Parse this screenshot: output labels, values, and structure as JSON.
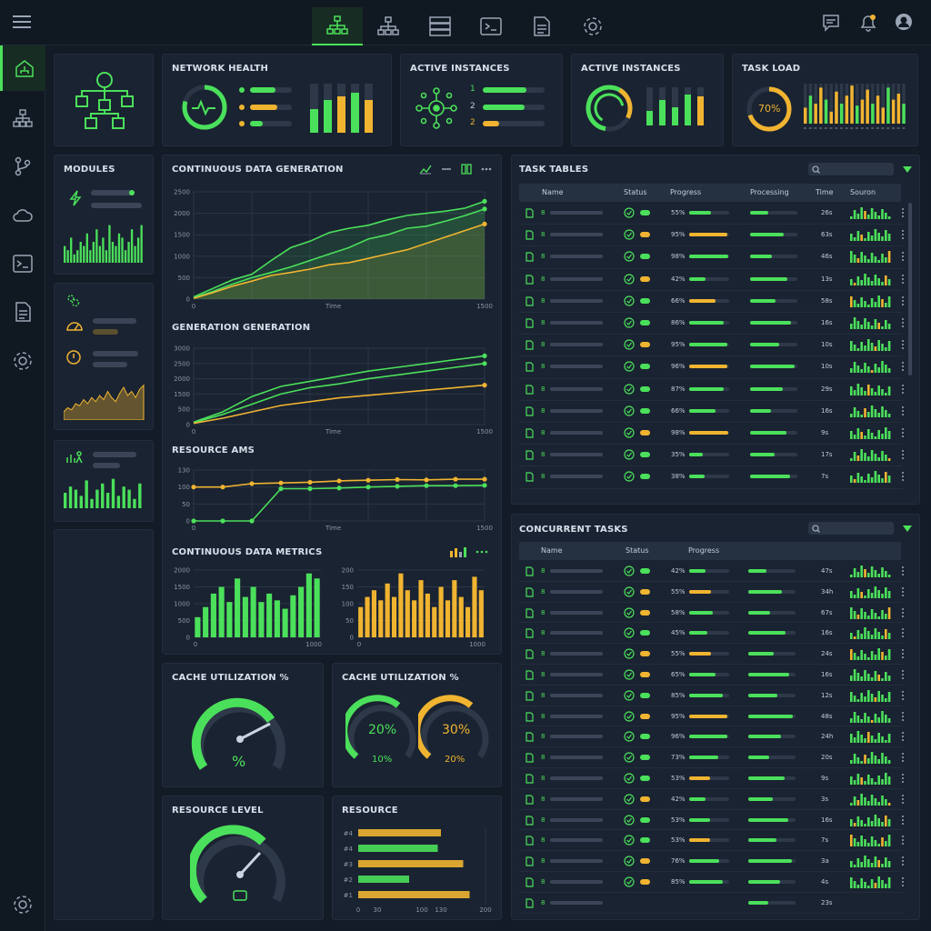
{
  "top_icons": [
    "menu-icon",
    "hierarchy-icon",
    "org-chart-icon",
    "server-icon",
    "terminal-icon",
    "document-icon",
    "gear-icon",
    "chat-icon",
    "bell-icon",
    "user-icon"
  ],
  "side_icons": [
    "home-hierarchy-icon",
    "hierarchy-icon",
    "branch-icon",
    "cloud-icon",
    "terminal-icon",
    "document-icon",
    "gear-icon",
    "gear-icon"
  ],
  "colors": {
    "green": "#4be05b",
    "amber": "#f0b431",
    "panel": "#1a2331",
    "bg": "#131b27"
  },
  "kpi": {
    "network_health": {
      "title": "NETWORK HEALTH"
    },
    "active1": {
      "title": "ACTIVE INSTANCES",
      "nums": [
        "1",
        "2",
        "2"
      ]
    },
    "active2": {
      "title": "ACTIVE INSTANCES"
    },
    "task_load": {
      "title": "TASK LOAD",
      "value": "70%",
      "progress": 0.7
    }
  },
  "modules": {
    "title": "MODULES"
  },
  "charts": {
    "cdg": {
      "title": "CONTINUOUS DATA GENERATION",
      "xlabel": "Time",
      "yticks": [
        "2500",
        "2000",
        "1500",
        "1000",
        "500",
        "0"
      ],
      "xticks": [
        "0",
        "1500"
      ]
    },
    "gg": {
      "title": "GENERATION GENERATION",
      "xlabel": "Time",
      "yticks": [
        "3000",
        "2500",
        "2000",
        "1500",
        "500",
        "0"
      ],
      "xticks": [
        "0",
        "1500"
      ]
    },
    "ra": {
      "title": "RESOURCE AMS",
      "xlabel": "Time",
      "yticks": [
        "130",
        "100",
        "50",
        "0"
      ],
      "xticks": [
        "0",
        "1500"
      ]
    },
    "cdm": {
      "title": "CONTINUOUS DATA METRICS",
      "left_yticks": [
        "2000",
        "1500",
        "1000",
        "500",
        "0"
      ],
      "left_xticks": [
        "0",
        "1000"
      ],
      "right_yticks": [
        "200",
        "150",
        "100",
        "50",
        "0"
      ],
      "right_xticks": [
        "0",
        "1000"
      ]
    }
  },
  "chart_data": [
    {
      "type": "line",
      "title": "CONTINUOUS DATA GENERATION",
      "xlabel": "Time",
      "x": [
        0,
        100,
        200,
        300,
        400,
        500,
        600,
        700,
        800,
        900,
        1000,
        1100,
        1200,
        1300,
        1400,
        1500
      ],
      "ylim": [
        0,
        2500
      ],
      "xlim": [
        0,
        1500
      ],
      "series": [
        {
          "values": [
            50,
            250,
            450,
            580,
            900,
            1200,
            1350,
            1550,
            1650,
            1720,
            1850,
            1950,
            2000,
            2050,
            2120,
            2280
          ]
        },
        {
          "values": [
            30,
            180,
            350,
            500,
            620,
            750,
            900,
            1050,
            1200,
            1400,
            1500,
            1650,
            1700,
            1820,
            1950,
            2100
          ]
        },
        {
          "values": [
            20,
            150,
            300,
            420,
            550,
            620,
            700,
            800,
            850,
            950,
            1050,
            1150,
            1300,
            1450,
            1600,
            1750
          ]
        }
      ]
    },
    {
      "type": "line",
      "title": "GENERATION GENERATION",
      "xlabel": "Time",
      "x": [
        0,
        150,
        300,
        450,
        600,
        750,
        900,
        1050,
        1200,
        1350,
        1500
      ],
      "ylim": [
        0,
        3000
      ],
      "xlim": [
        0,
        1500
      ],
      "series": [
        {
          "values": [
            100,
            500,
            1100,
            1500,
            1700,
            1900,
            2100,
            2250,
            2400,
            2550,
            2700
          ]
        },
        {
          "values": [
            80,
            400,
            800,
            1200,
            1450,
            1600,
            1800,
            1950,
            2100,
            2250,
            2400
          ]
        },
        {
          "values": [
            50,
            250,
            500,
            750,
            900,
            1050,
            1150,
            1250,
            1350,
            1450,
            1550
          ]
        }
      ]
    },
    {
      "type": "line",
      "title": "RESOURCE AMS",
      "xlabel": "Time",
      "x": [
        0,
        150,
        300,
        450,
        600,
        750,
        900,
        1050,
        1200,
        1350,
        1500
      ],
      "ylim": [
        0,
        150
      ],
      "xlim": [
        0,
        1500
      ],
      "series": [
        {
          "values": [
            100,
            100,
            110,
            112,
            114,
            118,
            120,
            122,
            121,
            123,
            123
          ]
        },
        {
          "values": [
            0,
            0,
            0,
            95,
            95,
            97,
            100,
            102,
            104,
            104,
            105
          ]
        }
      ]
    },
    {
      "type": "bar",
      "title": "CONTINUOUS DATA METRICS",
      "ylim": [
        0,
        2000
      ],
      "values": [
        600,
        900,
        1300,
        1500,
        1050,
        1750,
        1200,
        1500,
        1050,
        1300,
        1100,
        850,
        1250,
        1500,
        1900,
        1750
      ]
    },
    {
      "type": "bar",
      "ylim": [
        0,
        200
      ],
      "values": [
        90,
        120,
        140,
        110,
        160,
        120,
        190,
        140,
        110,
        170,
        130,
        90,
        150,
        110,
        170,
        120,
        90,
        180,
        140
      ]
    },
    {
      "type": "bar",
      "title": "RESOURCE",
      "categories": [
        "#4",
        "#4",
        "#3",
        "#2",
        "#1"
      ],
      "values": [
        130,
        125,
        165,
        80,
        175
      ],
      "xlim": [
        0,
        200
      ],
      "xticks": [
        "0",
        "30",
        "100",
        "130",
        "200"
      ]
    }
  ],
  "gauges": {
    "cache1": {
      "title": "CACHE UTILIZATION %",
      "label": "%"
    },
    "cache2": {
      "title": "CACHE UTILIZATION %",
      "a_value": "20%",
      "a_sub": "10%",
      "b_value": "30%",
      "b_sub": "20%"
    },
    "resource_level": {
      "title": "RESOURCE LEVEL"
    }
  },
  "task_tables": {
    "title": "TASK TABLES",
    "headers": [
      "Name",
      "Status",
      "Progress",
      "Processing",
      "Time",
      "Souron"
    ],
    "rows": [
      {
        "name": "8",
        "dot": "green",
        "pct": "55%",
        "time": "26s"
      },
      {
        "name": "8",
        "dot": "amber",
        "pct": "95%",
        "time": "63s"
      },
      {
        "name": "8",
        "dot": "green",
        "pct": "98%",
        "time": "46s"
      },
      {
        "name": "8",
        "dot": "amber",
        "pct": "42%",
        "time": "13s"
      },
      {
        "name": "8",
        "dot": "green",
        "pct": "66%",
        "time": "58s"
      },
      {
        "name": "8",
        "dot": "green",
        "pct": "86%",
        "time": "16s"
      },
      {
        "name": "8",
        "dot": "amber",
        "pct": "95%",
        "time": "10s"
      },
      {
        "name": "8",
        "dot": "green",
        "pct": "96%",
        "time": "10s"
      },
      {
        "name": "8",
        "dot": "green",
        "pct": "87%",
        "time": "29s"
      },
      {
        "name": "8",
        "dot": "green",
        "pct": "66%",
        "time": "16s"
      },
      {
        "name": "8",
        "dot": "amber",
        "pct": "98%",
        "time": "9s"
      },
      {
        "name": "8",
        "dot": "green",
        "pct": "35%",
        "time": "17s"
      },
      {
        "name": "8",
        "dot": "green",
        "pct": "38%",
        "time": "7s"
      }
    ]
  },
  "concurrent_tasks": {
    "title": "CONCURRENT TASKS",
    "headers": [
      "Name",
      "Status",
      "Progress"
    ],
    "rows": [
      {
        "name": "8",
        "dot": "green",
        "pct": "42%",
        "time": "47s"
      },
      {
        "name": "8",
        "dot": "amber",
        "pct": "55%",
        "time": "34h"
      },
      {
        "name": "8",
        "dot": "amber",
        "pct": "58%",
        "time": "67s"
      },
      {
        "name": "8",
        "dot": "green",
        "pct": "45%",
        "time": "16s"
      },
      {
        "name": "8",
        "dot": "amber",
        "pct": "55%",
        "time": "24s"
      },
      {
        "name": "8",
        "dot": "amber",
        "pct": "65%",
        "time": "16s"
      },
      {
        "name": "8",
        "dot": "green",
        "pct": "85%",
        "time": "12s"
      },
      {
        "name": "8",
        "dot": "amber",
        "pct": "95%",
        "time": "48s"
      },
      {
        "name": "8",
        "dot": "green",
        "pct": "96%",
        "time": "24h"
      },
      {
        "name": "8",
        "dot": "green",
        "pct": "73%",
        "time": "20s"
      },
      {
        "name": "8",
        "dot": "green",
        "pct": "53%",
        "time": "9s"
      },
      {
        "name": "8",
        "dot": "amber",
        "pct": "42%",
        "time": "3s"
      },
      {
        "name": "8",
        "dot": "green",
        "pct": "53%",
        "time": "16s"
      },
      {
        "name": "8",
        "dot": "green",
        "pct": "53%",
        "time": "7s"
      },
      {
        "name": "8",
        "dot": "amber",
        "pct": "76%",
        "time": "3a"
      },
      {
        "name": "8",
        "dot": "amber",
        "pct": "85%",
        "time": "4s"
      },
      {
        "name": "8",
        "dot": "",
        "pct": "",
        "time": "23s"
      }
    ]
  }
}
